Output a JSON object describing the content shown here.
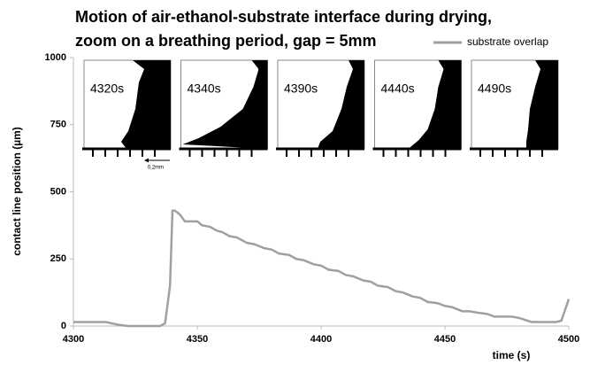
{
  "chart_data": {
    "type": "line",
    "title": [
      "Motion of air-ethanol-substrate interface during drying,",
      "zoom on a breathing period, gap = 5mm"
    ],
    "x_label": "time (s)",
    "y_label": "contact line position (µm)",
    "x": [
      4300,
      4310,
      4313,
      4318,
      4322,
      4335,
      4337,
      4339,
      4340,
      4341,
      4343,
      4345,
      4350,
      4352,
      4355,
      4358,
      4360,
      4363,
      4366,
      4370,
      4373,
      4377,
      4380,
      4383,
      4387,
      4390,
      4393,
      4397,
      4400,
      4403,
      4407,
      4410,
      4413,
      4417,
      4420,
      4423,
      4427,
      4430,
      4433,
      4437,
      4440,
      4443,
      4447,
      4450,
      4453,
      4457,
      4460,
      4463,
      4467,
      4470,
      4473,
      4477,
      4480,
      4485,
      4490,
      4495,
      4497,
      4500
    ],
    "series": [
      {
        "name": "substrate overlap",
        "color": "#a0a0a0",
        "values": [
          15,
          15,
          15,
          5,
          0,
          0,
          10,
          150,
          430,
          430,
          415,
          390,
          390,
          375,
          370,
          355,
          350,
          335,
          330,
          310,
          305,
          290,
          285,
          270,
          265,
          250,
          245,
          230,
          225,
          210,
          205,
          190,
          185,
          170,
          165,
          150,
          145,
          130,
          125,
          110,
          105,
          90,
          85,
          75,
          70,
          55,
          55,
          50,
          45,
          35,
          35,
          35,
          30,
          15,
          15,
          15,
          20,
          100
        ]
      }
    ],
    "xlim": [
      4300,
      4500
    ],
    "xticks": [
      4300,
      4350,
      4400,
      4450,
      4500
    ],
    "ylim": [
      0,
      1000
    ],
    "yticks": [
      0,
      250,
      500,
      750,
      1000
    ],
    "grid": false,
    "legend": "top-right",
    "insets": [
      "4320s",
      "4340s",
      "4390s",
      "4440s",
      "4490s"
    ],
    "scale_bar_label": "0,2mm"
  }
}
